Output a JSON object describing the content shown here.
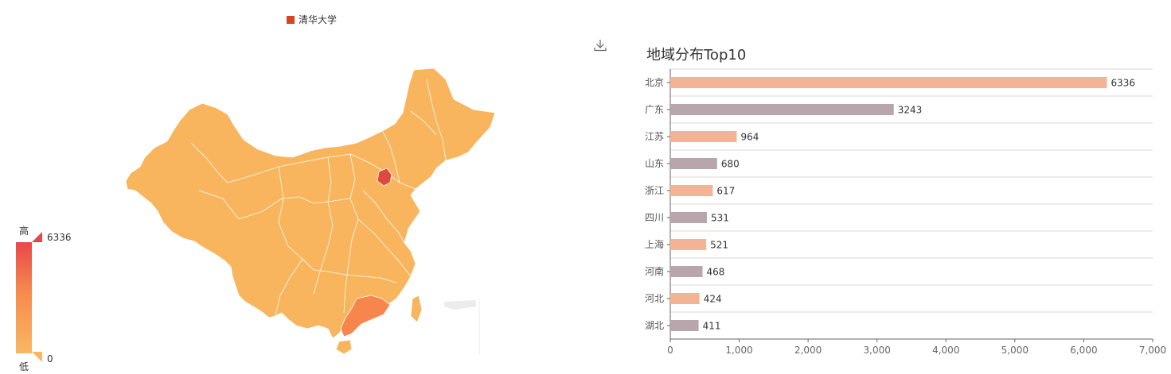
{
  "legend": {
    "label": "清华大学",
    "color": "#d6451f"
  },
  "toolbox": {
    "download_icon": "download-icon"
  },
  "visual_map": {
    "high_text": "高",
    "low_text": "低",
    "max": 6336,
    "min": 0,
    "max_label": "6336",
    "min_label": "0",
    "color_high": "#e8474a",
    "color_low": "#f8b764"
  },
  "chart_data": [
    {
      "type": "map",
      "region": "China",
      "values": [
        {
          "name": "北京",
          "value": 6336
        },
        {
          "name": "广东",
          "value": 3243
        },
        {
          "name": "江苏",
          "value": 964
        },
        {
          "name": "山东",
          "value": 680
        },
        {
          "name": "浙江",
          "value": 617
        },
        {
          "name": "四川",
          "value": 531
        },
        {
          "name": "上海",
          "value": 521
        },
        {
          "name": "河南",
          "value": 468
        },
        {
          "name": "河北",
          "value": 424
        },
        {
          "name": "湖北",
          "value": 411
        }
      ]
    },
    {
      "type": "bar",
      "orientation": "horizontal",
      "title": "地域分布Top10",
      "categories": [
        "北京",
        "广东",
        "江苏",
        "山东",
        "浙江",
        "四川",
        "上海",
        "河南",
        "河北",
        "湖北"
      ],
      "values": [
        6336,
        3243,
        964,
        680,
        617,
        531,
        521,
        468,
        424,
        411
      ],
      "colors": [
        "#f3b395",
        "#b9a6ad"
      ],
      "xlim": [
        0,
        7000
      ],
      "xticks": [
        "0",
        "1,000",
        "2,000",
        "3,000",
        "4,000",
        "5,000",
        "6,000",
        "7,000"
      ],
      "grid": true
    }
  ]
}
